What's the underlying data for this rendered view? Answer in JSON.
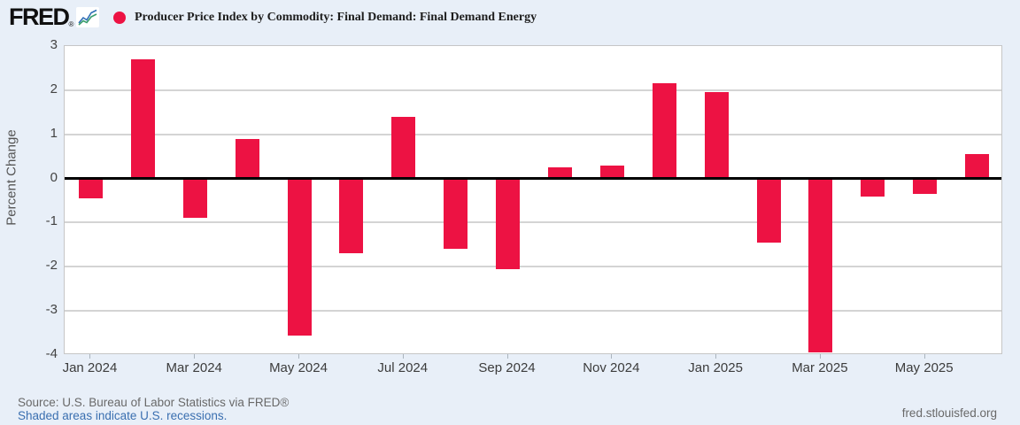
{
  "header": {
    "logo_text": "FRED",
    "logo_registered": "®",
    "legend_dot_color": "#ed1243",
    "title": "Producer Price Index by Commodity: Final Demand: Final Demand Energy"
  },
  "chart_data": {
    "type": "bar",
    "title": "Producer Price Index by Commodity: Final Demand: Final Demand Energy",
    "xlabel": "",
    "ylabel": "Percent Change",
    "ylim": [
      -4,
      3
    ],
    "y_ticks": [
      3,
      2,
      1,
      0,
      -1,
      -2,
      -3,
      -4
    ],
    "grid": true,
    "legend_position": "top-left",
    "bar_color": "#ed1243",
    "categories": [
      "Jan 2024",
      "Feb 2024",
      "Mar 2024",
      "Apr 2024",
      "May 2024",
      "Jun 2024",
      "Jul 2024",
      "Aug 2024",
      "Sep 2024",
      "Oct 2024",
      "Nov 2024",
      "Dec 2024",
      "Jan 2025",
      "Feb 2025",
      "Mar 2025",
      "Apr 2025",
      "May 2025",
      "Jun 2025"
    ],
    "values": [
      -0.45,
      2.7,
      -0.9,
      0.9,
      -3.55,
      -1.7,
      1.4,
      -1.6,
      -2.05,
      0.25,
      0.3,
      2.15,
      1.95,
      -1.45,
      -3.95,
      -0.4,
      -0.35,
      0.55
    ],
    "x_axis_labeled_categories": [
      "Jan 2024",
      "Mar 2024",
      "May 2024",
      "Jul 2024",
      "Sep 2024",
      "Nov 2024",
      "Jan 2025",
      "Mar 2025",
      "May 2025"
    ]
  },
  "footer": {
    "source_line": "Source: U.S. Bureau of Labor Statistics via FRED®",
    "recession_note": "Shaded areas indicate U.S. recessions.",
    "site_link": "fred.stlouisfed.org"
  }
}
